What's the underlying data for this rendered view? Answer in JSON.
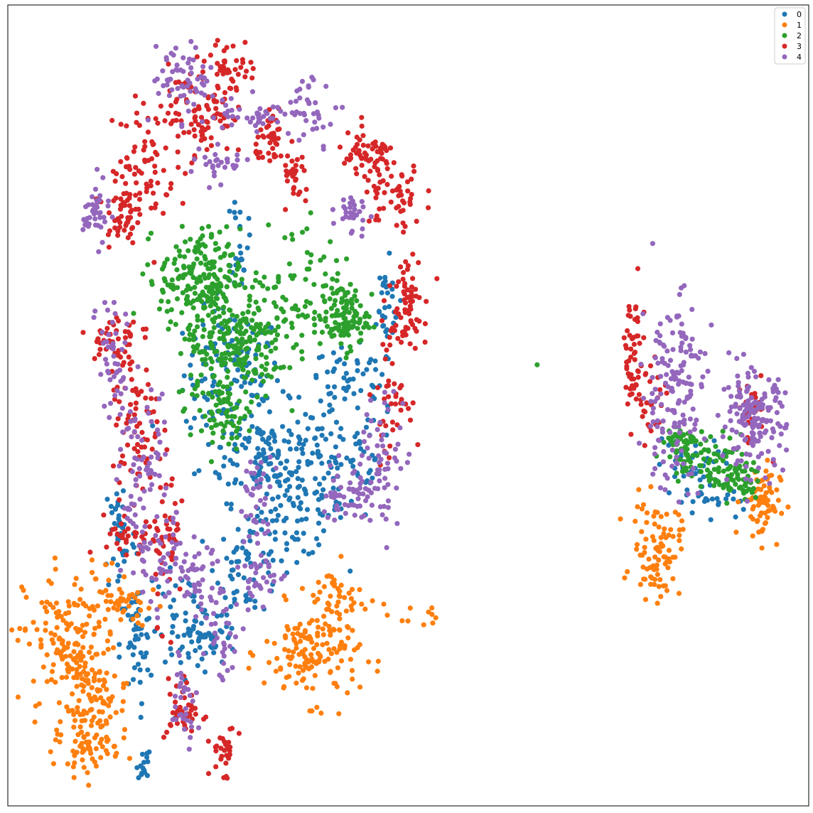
{
  "chart_data": {
    "type": "scatter",
    "title": "",
    "xlabel": "",
    "ylabel": "",
    "grid": false,
    "ticks": false,
    "legend_position": "top-right",
    "xlim": [
      0,
      100
    ],
    "ylim": [
      0,
      100
    ],
    "series": [
      {
        "name": "0",
        "color": "#1f77b4",
        "clusters": [
          {
            "cx": 28,
            "cy": 54,
            "sx": 3,
            "sy": 4,
            "n": 120
          },
          {
            "cx": 32,
            "cy": 44,
            "sx": 4,
            "sy": 3,
            "n": 120
          },
          {
            "cx": 36,
            "cy": 37,
            "sx": 3,
            "sy": 3,
            "n": 80
          },
          {
            "cx": 41,
            "cy": 43,
            "sx": 4,
            "sy": 4,
            "n": 80
          },
          {
            "cx": 43,
            "cy": 53,
            "sx": 3,
            "sy": 2,
            "n": 50
          },
          {
            "cx": 30,
            "cy": 30,
            "sx": 2,
            "sy": 3,
            "n": 60
          },
          {
            "cx": 22,
            "cy": 23,
            "sx": 2,
            "sy": 3,
            "n": 50
          },
          {
            "cx": 16,
            "cy": 20,
            "sx": 1,
            "sy": 4,
            "n": 50
          },
          {
            "cx": 14,
            "cy": 34,
            "sx": 1,
            "sy": 4,
            "n": 40
          },
          {
            "cx": 25,
            "cy": 21,
            "sx": 2,
            "sy": 1.5,
            "n": 40
          },
          {
            "cx": 17,
            "cy": 5.5,
            "sx": 0.4,
            "sy": 1.2,
            "n": 15
          },
          {
            "cx": 29,
            "cy": 71,
            "sx": 0.5,
            "sy": 3,
            "n": 25
          },
          {
            "cx": 47,
            "cy": 62,
            "sx": 1,
            "sy": 3,
            "n": 30
          },
          {
            "cx": 85,
            "cy": 42,
            "sx": 2,
            "sy": 2,
            "n": 40
          },
          {
            "cx": 88,
            "cy": 38,
            "sx": 2,
            "sy": 1.5,
            "n": 20
          }
        ]
      },
      {
        "name": "1",
        "color": "#ff7f0e",
        "clusters": [
          {
            "cx": 8,
            "cy": 20,
            "sx": 3,
            "sy": 5,
            "n": 180
          },
          {
            "cx": 11,
            "cy": 12,
            "sx": 2,
            "sy": 3,
            "n": 80
          },
          {
            "cx": 10,
            "cy": 7,
            "sx": 2,
            "sy": 1,
            "n": 40
          },
          {
            "cx": 15,
            "cy": 25,
            "sx": 2,
            "sy": 1.5,
            "n": 40
          },
          {
            "cx": 38,
            "cy": 19,
            "sx": 3,
            "sy": 3,
            "n": 150
          },
          {
            "cx": 41,
            "cy": 26,
            "sx": 2,
            "sy": 2,
            "n": 40
          },
          {
            "cx": 53,
            "cy": 24,
            "sx": 2.5,
            "sy": 1,
            "n": 10
          },
          {
            "cx": 81,
            "cy": 32,
            "sx": 1.5,
            "sy": 3,
            "n": 90
          },
          {
            "cx": 94,
            "cy": 38,
            "sx": 1.2,
            "sy": 2.5,
            "n": 70
          }
        ]
      },
      {
        "name": "2",
        "color": "#2ca02c",
        "clusters": [
          {
            "cx": 24,
            "cy": 66,
            "sx": 2.5,
            "sy": 3,
            "n": 180
          },
          {
            "cx": 27,
            "cy": 58,
            "sx": 3,
            "sy": 4,
            "n": 180
          },
          {
            "cx": 32,
            "cy": 60,
            "sx": 3,
            "sy": 4,
            "n": 90
          },
          {
            "cx": 27,
            "cy": 49,
            "sx": 1.5,
            "sy": 2,
            "n": 60
          },
          {
            "cx": 42,
            "cy": 61,
            "sx": 1.5,
            "sy": 2,
            "n": 110
          },
          {
            "cx": 37,
            "cy": 66,
            "sx": 3,
            "sy": 5,
            "n": 40
          },
          {
            "cx": 66,
            "cy": 55,
            "sx": 0.1,
            "sy": 0.1,
            "n": 1
          },
          {
            "cx": 84,
            "cy": 45,
            "sx": 1.5,
            "sy": 1.5,
            "n": 60
          },
          {
            "cx": 91,
            "cy": 41,
            "sx": 1.5,
            "sy": 1.5,
            "n": 60
          },
          {
            "cx": 88,
            "cy": 42,
            "sx": 2,
            "sy": 2,
            "n": 40
          }
        ]
      },
      {
        "name": "3",
        "color": "#d62728",
        "clusters": [
          {
            "cx": 24,
            "cy": 87,
            "sx": 2,
            "sy": 3,
            "n": 90
          },
          {
            "cx": 28,
            "cy": 92,
            "sx": 1.5,
            "sy": 2,
            "n": 40
          },
          {
            "cx": 17,
            "cy": 80,
            "sx": 2,
            "sy": 4,
            "n": 80
          },
          {
            "cx": 14,
            "cy": 74,
            "sx": 1,
            "sy": 2,
            "n": 40
          },
          {
            "cx": 13,
            "cy": 58,
            "sx": 1.5,
            "sy": 2,
            "n": 40
          },
          {
            "cx": 16,
            "cy": 48,
            "sx": 1.5,
            "sy": 6,
            "n": 80
          },
          {
            "cx": 16,
            "cy": 33,
            "sx": 2,
            "sy": 1.5,
            "n": 40
          },
          {
            "cx": 20,
            "cy": 34,
            "sx": 1,
            "sy": 5,
            "n": 40
          },
          {
            "cx": 33,
            "cy": 83,
            "sx": 1,
            "sy": 1.5,
            "n": 40
          },
          {
            "cx": 36,
            "cy": 78,
            "sx": 0.8,
            "sy": 2,
            "n": 30
          },
          {
            "cx": 45,
            "cy": 81,
            "sx": 2,
            "sy": 1.5,
            "n": 60
          },
          {
            "cx": 48,
            "cy": 76,
            "sx": 2,
            "sy": 2,
            "n": 50
          },
          {
            "cx": 50,
            "cy": 64,
            "sx": 1.2,
            "sy": 3,
            "n": 60
          },
          {
            "cx": 48,
            "cy": 52,
            "sx": 1,
            "sy": 4,
            "n": 50
          },
          {
            "cx": 22,
            "cy": 12,
            "sx": 1.2,
            "sy": 2,
            "n": 40
          },
          {
            "cx": 27,
            "cy": 7,
            "sx": 0.8,
            "sy": 1.5,
            "n": 30
          },
          {
            "cx": 78,
            "cy": 56,
            "sx": 0.8,
            "sy": 4,
            "n": 50
          },
          {
            "cx": 80,
            "cy": 50,
            "sx": 1,
            "sy": 3,
            "n": 30
          },
          {
            "cx": 93,
            "cy": 49,
            "sx": 1,
            "sy": 2,
            "n": 30
          }
        ]
      },
      {
        "name": "4",
        "color": "#9467bd",
        "clusters": [
          {
            "cx": 22,
            "cy": 91,
            "sx": 2,
            "sy": 2,
            "n": 60
          },
          {
            "cx": 30,
            "cy": 86,
            "sx": 3,
            "sy": 1,
            "n": 40
          },
          {
            "cx": 26,
            "cy": 80,
            "sx": 2,
            "sy": 1,
            "n": 30
          },
          {
            "cx": 11,
            "cy": 74,
            "sx": 0.8,
            "sy": 2,
            "n": 40
          },
          {
            "cx": 13,
            "cy": 55,
            "sx": 1,
            "sy": 5,
            "n": 50
          },
          {
            "cx": 17,
            "cy": 40,
            "sx": 1.5,
            "sy": 6,
            "n": 80
          },
          {
            "cx": 20,
            "cy": 30,
            "sx": 1.5,
            "sy": 3,
            "n": 40
          },
          {
            "cx": 24,
            "cy": 28,
            "sx": 1.5,
            "sy": 2,
            "n": 40
          },
          {
            "cx": 22,
            "cy": 14,
            "sx": 0.8,
            "sy": 3,
            "n": 30
          },
          {
            "cx": 27,
            "cy": 21,
            "sx": 1,
            "sy": 3,
            "n": 30
          },
          {
            "cx": 32,
            "cy": 28,
            "sx": 1.5,
            "sy": 1.5,
            "n": 30
          },
          {
            "cx": 31,
            "cy": 38,
            "sx": 1,
            "sy": 3,
            "n": 40
          },
          {
            "cx": 38,
            "cy": 87,
            "sx": 2,
            "sy": 2,
            "n": 40
          },
          {
            "cx": 43,
            "cy": 39,
            "sx": 2,
            "sy": 2,
            "n": 60
          },
          {
            "cx": 47,
            "cy": 44,
            "sx": 1.5,
            "sy": 4,
            "n": 50
          },
          {
            "cx": 43,
            "cy": 74,
            "sx": 1,
            "sy": 1.5,
            "n": 30
          },
          {
            "cx": 83,
            "cy": 52,
            "sx": 2,
            "sy": 6,
            "n": 160
          },
          {
            "cx": 93,
            "cy": 48,
            "sx": 2,
            "sy": 3,
            "n": 160
          }
        ]
      }
    ]
  }
}
